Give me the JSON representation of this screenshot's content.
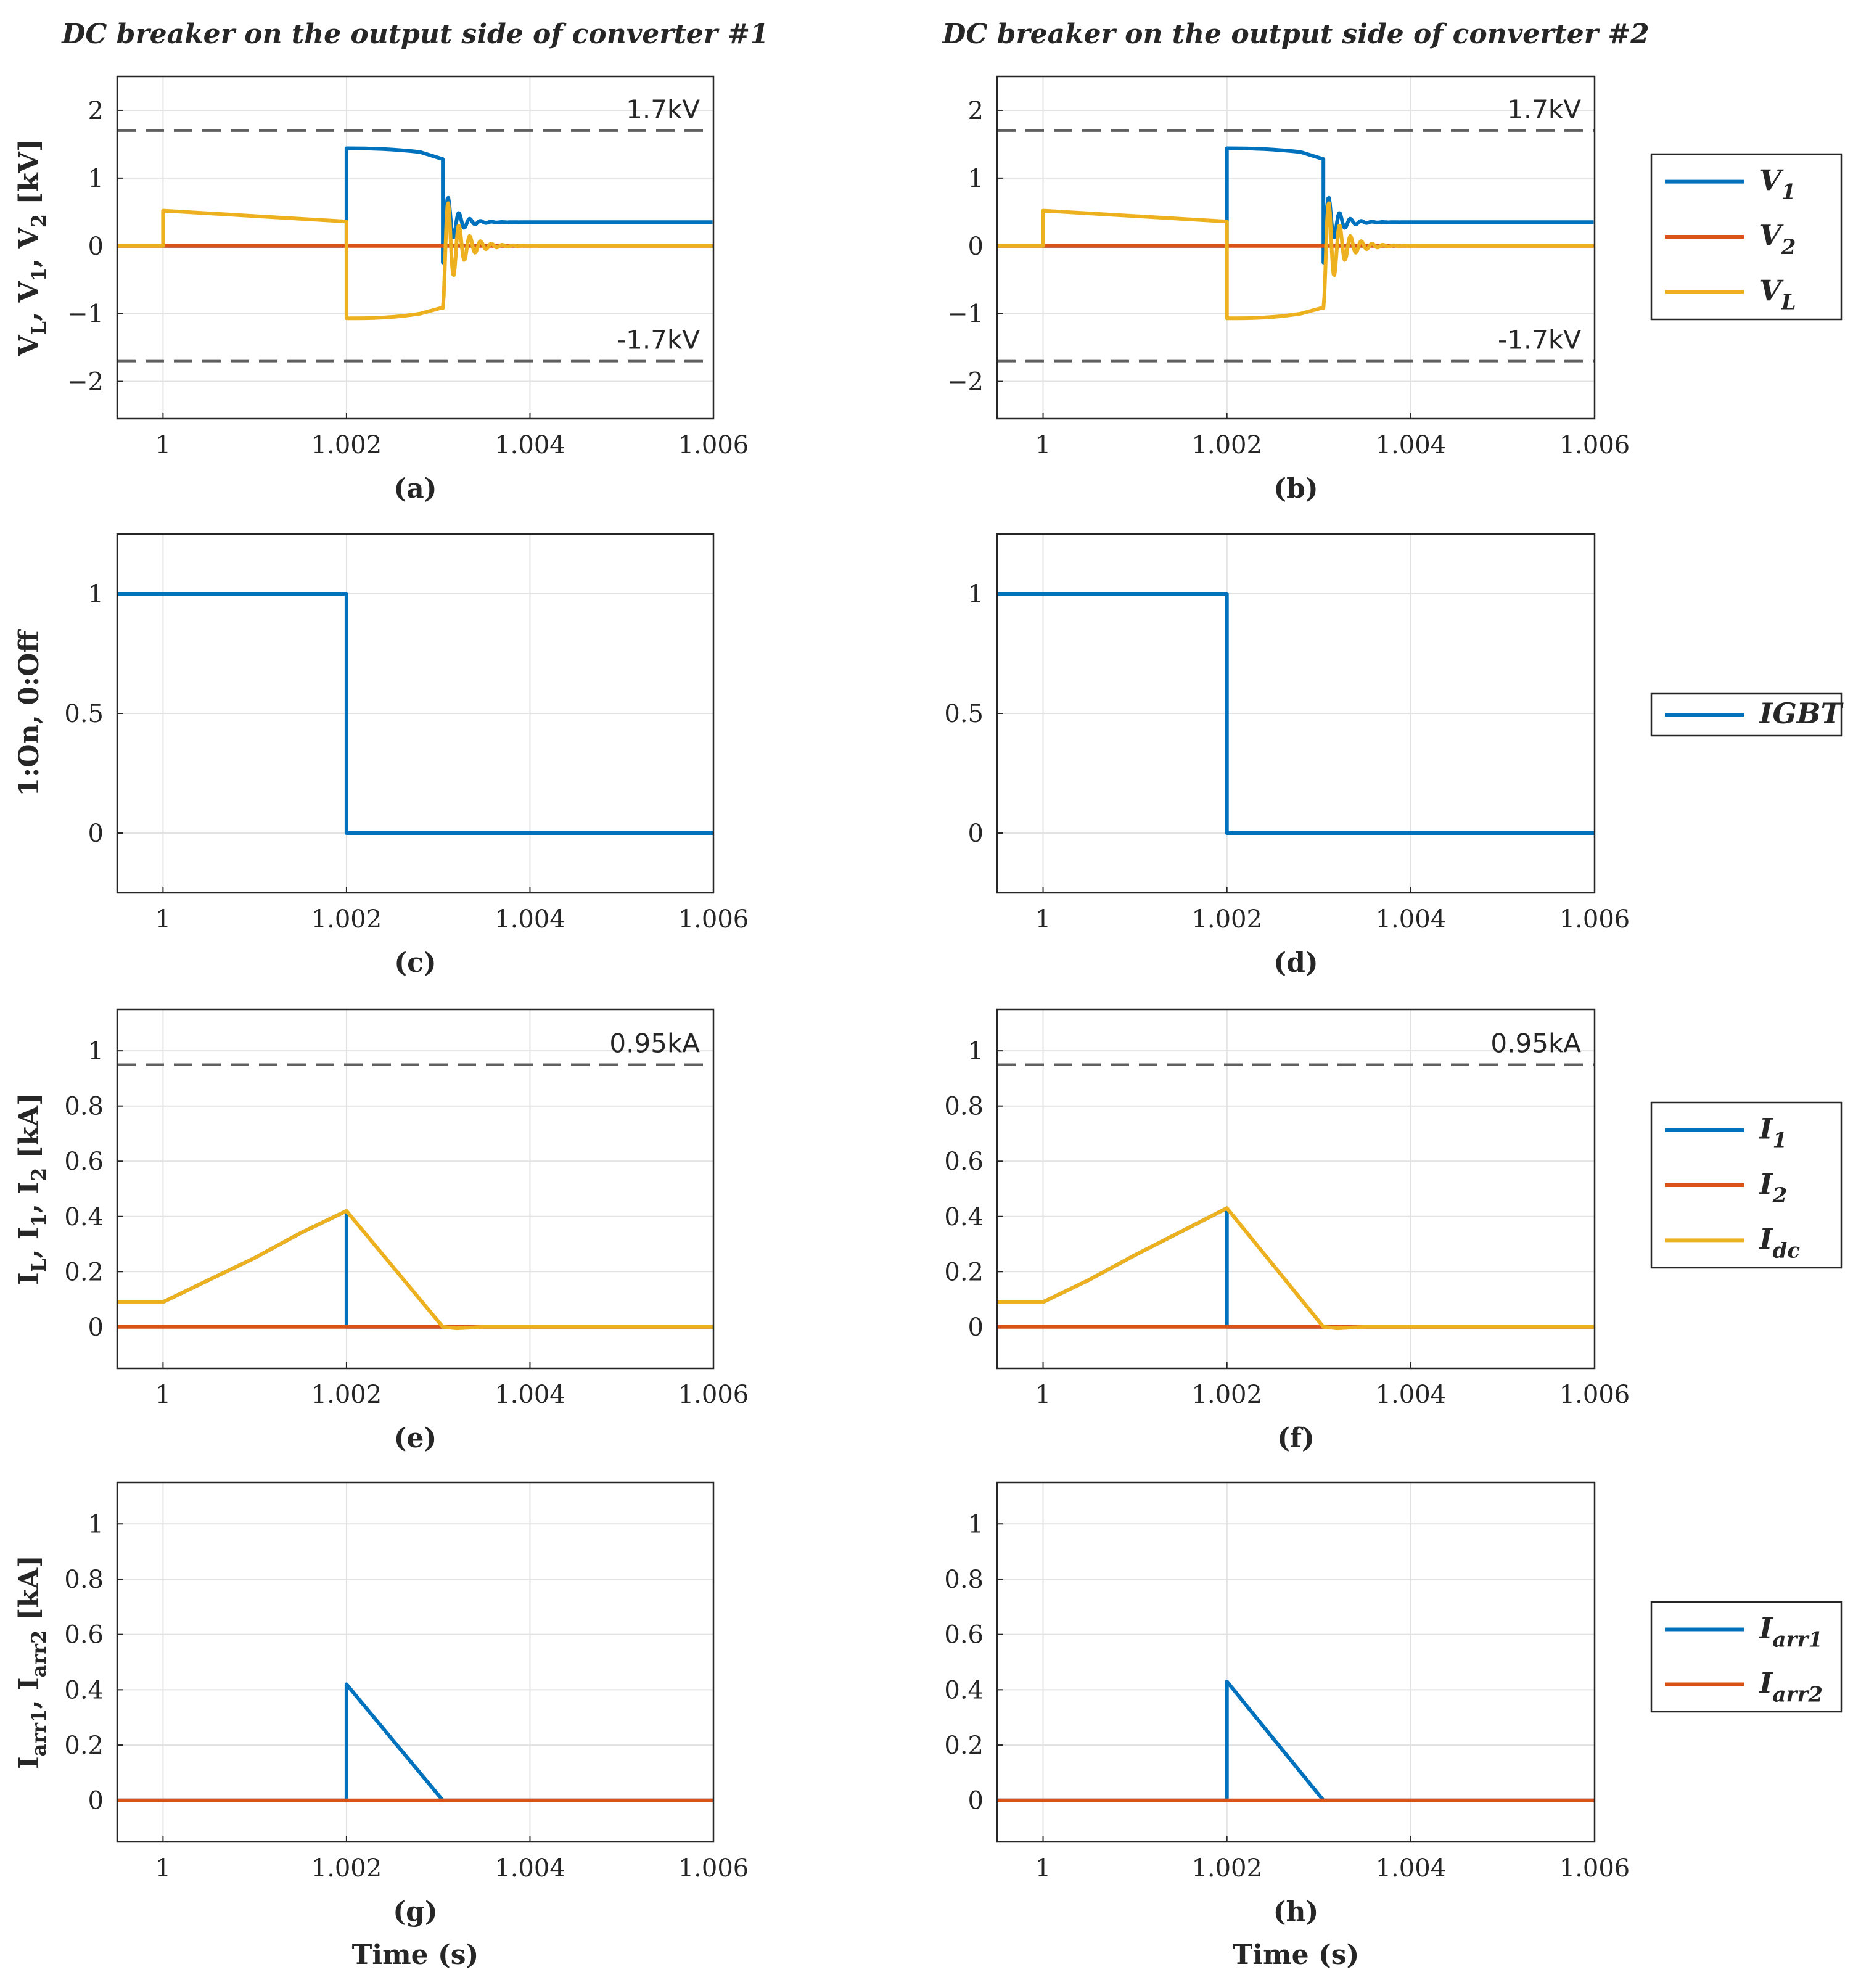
{
  "colors": {
    "blue": "#0072BD",
    "orange": "#D95319",
    "yellow": "#EDB120",
    "dash": "#606060",
    "grid": "#e2e2e2",
    "axis": "#262626"
  },
  "layout_rows": {
    "voltage": {
      "ylabel": {
        "main": "V",
        "parts": [
          [
            "L",
            ", V"
          ],
          [
            "1",
            ", V"
          ],
          [
            "2",
            " [kV]"
          ]
        ]
      },
      "legend": [
        {
          "id": "V1",
          "main": "V",
          "sub": "1",
          "color": "blue"
        },
        {
          "id": "V2",
          "main": "V",
          "sub": "2",
          "color": "orange"
        },
        {
          "id": "VL",
          "main": "V",
          "sub": "L",
          "color": "yellow"
        }
      ]
    },
    "igbt": {
      "ylabel_text": "1:On, 0:Off",
      "legend": [
        {
          "id": "IGBT",
          "main": "IGBT",
          "sub": "",
          "color": "blue"
        }
      ]
    },
    "current": {
      "ylabel": {
        "main": "I",
        "parts": [
          [
            "L",
            ", I"
          ],
          [
            "1",
            ", I"
          ],
          [
            "2",
            " [kA]"
          ]
        ]
      },
      "legend": [
        {
          "id": "I1",
          "main": "I",
          "sub": "1",
          "color": "blue"
        },
        {
          "id": "I2",
          "main": "I",
          "sub": "2",
          "color": "orange"
        },
        {
          "id": "Idc",
          "main": "I",
          "sub": "dc",
          "color": "yellow"
        }
      ]
    },
    "arrester": {
      "ylabel": {
        "main": "I",
        "parts": [
          [
            "arr1",
            ", I"
          ],
          [
            "arr2",
            " [kA]"
          ]
        ]
      },
      "legend": [
        {
          "id": "Iarr1",
          "main": "I",
          "sub": "arr1",
          "color": "blue"
        },
        {
          "id": "Iarr2",
          "main": "I",
          "sub": "arr2",
          "color": "orange"
        }
      ]
    }
  },
  "column_titles": [
    "DC breaker on the output side of converter #1",
    "DC breaker on the output side of converter #2"
  ],
  "xlabel": "Time (s)",
  "chart_data": [
    {
      "id": "a",
      "row": "voltage",
      "col": 0,
      "type": "line",
      "caption": "(a)",
      "xlim": [
        0.9995,
        1.006
      ],
      "ylim": [
        -2.55,
        2.5
      ],
      "xticks": [
        1,
        1.002,
        1.004,
        1.006
      ],
      "xtick_labels": [
        "1",
        "1.002",
        "1.004",
        "1.006"
      ],
      "yticks": [
        -2,
        -1,
        0,
        1,
        2
      ],
      "ytick_labels": [
        "−2",
        "−1",
        "0",
        "1",
        "2"
      ],
      "grid": true,
      "hlines": [
        {
          "y": 1.7,
          "label": "1.7kV"
        },
        {
          "y": -1.7,
          "label": "-1.7kV"
        }
      ],
      "series": [
        {
          "name": "V1",
          "color": "blue",
          "kind": "v1"
        },
        {
          "name": "V2",
          "color": "orange",
          "kind": "zero"
        },
        {
          "name": "VL",
          "color": "yellow",
          "kind": "vl"
        }
      ]
    },
    {
      "id": "b",
      "row": "voltage",
      "col": 1,
      "type": "line",
      "caption": "(b)",
      "xlim": [
        0.9995,
        1.006
      ],
      "ylim": [
        -2.55,
        2.5
      ],
      "xticks": [
        1,
        1.002,
        1.004,
        1.006
      ],
      "xtick_labels": [
        "1",
        "1.002",
        "1.004",
        "1.006"
      ],
      "yticks": [
        -2,
        -1,
        0,
        1,
        2
      ],
      "ytick_labels": [
        "−2",
        "−1",
        "0",
        "1",
        "2"
      ],
      "grid": true,
      "hlines": [
        {
          "y": 1.7,
          "label": "1.7kV"
        },
        {
          "y": -1.7,
          "label": "-1.7kV"
        }
      ],
      "series": [
        {
          "name": "V1",
          "color": "blue",
          "kind": "v1"
        },
        {
          "name": "V2",
          "color": "orange",
          "kind": "zero"
        },
        {
          "name": "VL",
          "color": "yellow",
          "kind": "vl"
        }
      ]
    },
    {
      "id": "c",
      "row": "igbt",
      "col": 0,
      "type": "line",
      "caption": "(c)",
      "xlim": [
        0.9995,
        1.006
      ],
      "ylim": [
        -0.25,
        1.25
      ],
      "xticks": [
        1,
        1.002,
        1.004,
        1.006
      ],
      "xtick_labels": [
        "1",
        "1.002",
        "1.004",
        "1.006"
      ],
      "yticks": [
        0,
        0.5,
        1
      ],
      "ytick_labels": [
        "0",
        "0.5",
        "1"
      ],
      "grid": true,
      "hlines": [],
      "series": [
        {
          "name": "IGBT",
          "color": "blue",
          "points": [
            [
              0.9995,
              1
            ],
            [
              1.002,
              1
            ],
            [
              1.002,
              0
            ],
            [
              1.006,
              0
            ]
          ]
        }
      ]
    },
    {
      "id": "d",
      "row": "igbt",
      "col": 1,
      "type": "line",
      "caption": "(d)",
      "xlim": [
        0.9995,
        1.006
      ],
      "ylim": [
        -0.25,
        1.25
      ],
      "xticks": [
        1,
        1.002,
        1.004,
        1.006
      ],
      "xtick_labels": [
        "1",
        "1.002",
        "1.004",
        "1.006"
      ],
      "yticks": [
        0,
        0.5,
        1
      ],
      "ytick_labels": [
        "0",
        "0.5",
        "1"
      ],
      "grid": true,
      "hlines": [],
      "series": [
        {
          "name": "IGBT",
          "color": "blue",
          "points": [
            [
              0.9995,
              1
            ],
            [
              1.002,
              1
            ],
            [
              1.002,
              0
            ],
            [
              1.006,
              0
            ]
          ]
        }
      ]
    },
    {
      "id": "e",
      "row": "current",
      "col": 0,
      "type": "line",
      "caption": "(e)",
      "xlim": [
        0.9995,
        1.006
      ],
      "ylim": [
        -0.15,
        1.15
      ],
      "xticks": [
        1,
        1.002,
        1.004,
        1.006
      ],
      "xtick_labels": [
        "1",
        "1.002",
        "1.004",
        "1.006"
      ],
      "yticks": [
        0,
        0.2,
        0.4,
        0.6,
        0.8,
        1
      ],
      "ytick_labels": [
        "0",
        "0.2",
        "0.4",
        "0.6",
        "0.8",
        "1"
      ],
      "grid": true,
      "hlines": [
        {
          "y": 0.95,
          "label": "0.95kA"
        }
      ],
      "series": [
        {
          "name": "I1",
          "color": "blue",
          "points": [
            [
              0.9995,
              0.09
            ],
            [
              1.0,
              0.09
            ],
            [
              1.0005,
              0.17
            ],
            [
              1.001,
              0.25
            ],
            [
              1.0015,
              0.34
            ],
            [
              1.002,
              0.42
            ],
            [
              1.002,
              0.0
            ],
            [
              1.006,
              0.0
            ]
          ]
        },
        {
          "name": "I2",
          "color": "orange",
          "points": [
            [
              0.9995,
              0.0
            ],
            [
              1.006,
              0.0
            ]
          ]
        },
        {
          "name": "Idc",
          "color": "yellow",
          "points": [
            [
              0.9995,
              0.09
            ],
            [
              1.0,
              0.09
            ],
            [
              1.0005,
              0.17
            ],
            [
              1.001,
              0.25
            ],
            [
              1.0015,
              0.34
            ],
            [
              1.002,
              0.42
            ],
            [
              1.00305,
              0.0
            ],
            [
              1.0032,
              -0.005
            ],
            [
              1.0035,
              0.0
            ],
            [
              1.006,
              0.0
            ]
          ]
        }
      ]
    },
    {
      "id": "f",
      "row": "current",
      "col": 1,
      "type": "line",
      "caption": "(f)",
      "xlim": [
        0.9995,
        1.006
      ],
      "ylim": [
        -0.15,
        1.15
      ],
      "xticks": [
        1,
        1.002,
        1.004,
        1.006
      ],
      "xtick_labels": [
        "1",
        "1.002",
        "1.004",
        "1.006"
      ],
      "yticks": [
        0,
        0.2,
        0.4,
        0.6,
        0.8,
        1
      ],
      "ytick_labels": [
        "0",
        "0.2",
        "0.4",
        "0.6",
        "0.8",
        "1"
      ],
      "grid": true,
      "hlines": [
        {
          "y": 0.95,
          "label": "0.95kA"
        }
      ],
      "series": [
        {
          "name": "I1",
          "color": "blue",
          "points": [
            [
              0.9995,
              0.09
            ],
            [
              1.0,
              0.09
            ],
            [
              1.0005,
              0.17
            ],
            [
              1.001,
              0.26
            ],
            [
              1.0015,
              0.345
            ],
            [
              1.002,
              0.43
            ],
            [
              1.002,
              0.0
            ],
            [
              1.006,
              0.0
            ]
          ]
        },
        {
          "name": "I2",
          "color": "orange",
          "points": [
            [
              0.9995,
              0.0
            ],
            [
              1.006,
              0.0
            ]
          ]
        },
        {
          "name": "Idc",
          "color": "yellow",
          "points": [
            [
              0.9995,
              0.09
            ],
            [
              1.0,
              0.09
            ],
            [
              1.0005,
              0.17
            ],
            [
              1.001,
              0.26
            ],
            [
              1.0015,
              0.345
            ],
            [
              1.002,
              0.43
            ],
            [
              1.00305,
              0.0
            ],
            [
              1.0032,
              -0.005
            ],
            [
              1.0035,
              0.0
            ],
            [
              1.006,
              0.0
            ]
          ]
        }
      ]
    },
    {
      "id": "g",
      "row": "arrester",
      "col": 0,
      "type": "line",
      "caption": "(g)",
      "xlim": [
        0.9995,
        1.006
      ],
      "ylim": [
        -0.15,
        1.15
      ],
      "xticks": [
        1,
        1.002,
        1.004,
        1.006
      ],
      "xtick_labels": [
        "1",
        "1.002",
        "1.004",
        "1.006"
      ],
      "yticks": [
        0,
        0.2,
        0.4,
        0.6,
        0.8,
        1
      ],
      "ytick_labels": [
        "0",
        "0.2",
        "0.4",
        "0.6",
        "0.8",
        "1"
      ],
      "grid": true,
      "hlines": [],
      "series": [
        {
          "name": "Iarr1",
          "color": "blue",
          "points": [
            [
              0.9995,
              0.0
            ],
            [
              1.002,
              0.0
            ],
            [
              1.002,
              0.42
            ],
            [
              1.00305,
              0.0
            ],
            [
              1.006,
              0.0
            ]
          ]
        },
        {
          "name": "Iarr2",
          "color": "orange",
          "points": [
            [
              0.9995,
              0.0
            ],
            [
              1.006,
              0.0
            ]
          ]
        }
      ]
    },
    {
      "id": "h",
      "row": "arrester",
      "col": 1,
      "type": "line",
      "caption": "(h)",
      "xlim": [
        0.9995,
        1.006
      ],
      "ylim": [
        -0.15,
        1.15
      ],
      "xticks": [
        1,
        1.002,
        1.004,
        1.006
      ],
      "xtick_labels": [
        "1",
        "1.002",
        "1.004",
        "1.006"
      ],
      "yticks": [
        0,
        0.2,
        0.4,
        0.6,
        0.8,
        1
      ],
      "ytick_labels": [
        "0",
        "0.2",
        "0.4",
        "0.6",
        "0.8",
        "1"
      ],
      "grid": true,
      "hlines": [],
      "series": [
        {
          "name": "Iarr1",
          "color": "blue",
          "points": [
            [
              0.9995,
              0.0
            ],
            [
              1.002,
              0.0
            ],
            [
              1.002,
              0.43
            ],
            [
              1.00305,
              0.0
            ],
            [
              1.006,
              0.0
            ]
          ]
        },
        {
          "name": "Iarr2",
          "color": "orange",
          "points": [
            [
              0.9995,
              0.0
            ],
            [
              1.006,
              0.0
            ]
          ]
        }
      ]
    }
  ]
}
